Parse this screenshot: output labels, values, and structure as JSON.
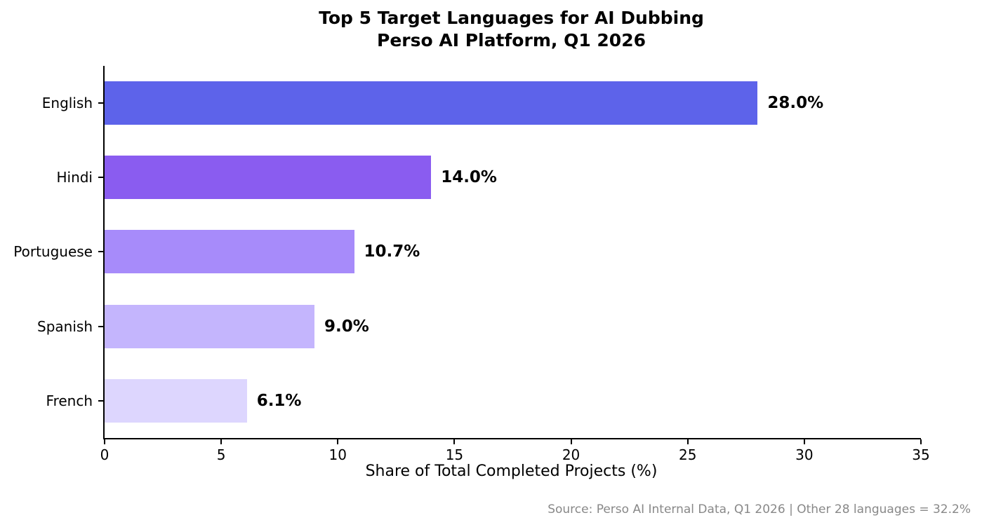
{
  "chart_data": {
    "type": "bar",
    "orientation": "horizontal",
    "title": "Top 5 Target Languages for AI Dubbing",
    "subtitle": "Perso AI Platform, Q1 2026",
    "categories": [
      "English",
      "Hindi",
      "Portuguese",
      "Spanish",
      "French"
    ],
    "values": [
      28.0,
      14.0,
      10.7,
      9.0,
      6.1
    ],
    "value_labels": [
      "28.0%",
      "14.0%",
      "10.7%",
      "9.0%",
      "6.1%"
    ],
    "bar_colors": [
      "#5d63ea",
      "#8a5cf0",
      "#a78bfa",
      "#c4b5fd",
      "#ddd6fe"
    ],
    "xlabel": "Share of Total Completed Projects (%)",
    "xlim": [
      0,
      35
    ],
    "xticks": [
      0,
      5,
      10,
      15,
      20,
      25,
      30,
      35
    ],
    "grid": false,
    "legend": "none",
    "axis_color": "#000000",
    "text_color": "#000000",
    "source_color": "#888888",
    "source_note": "Source: Perso AI Internal Data, Q1 2026 | Other 28 languages = 32.2%"
  }
}
